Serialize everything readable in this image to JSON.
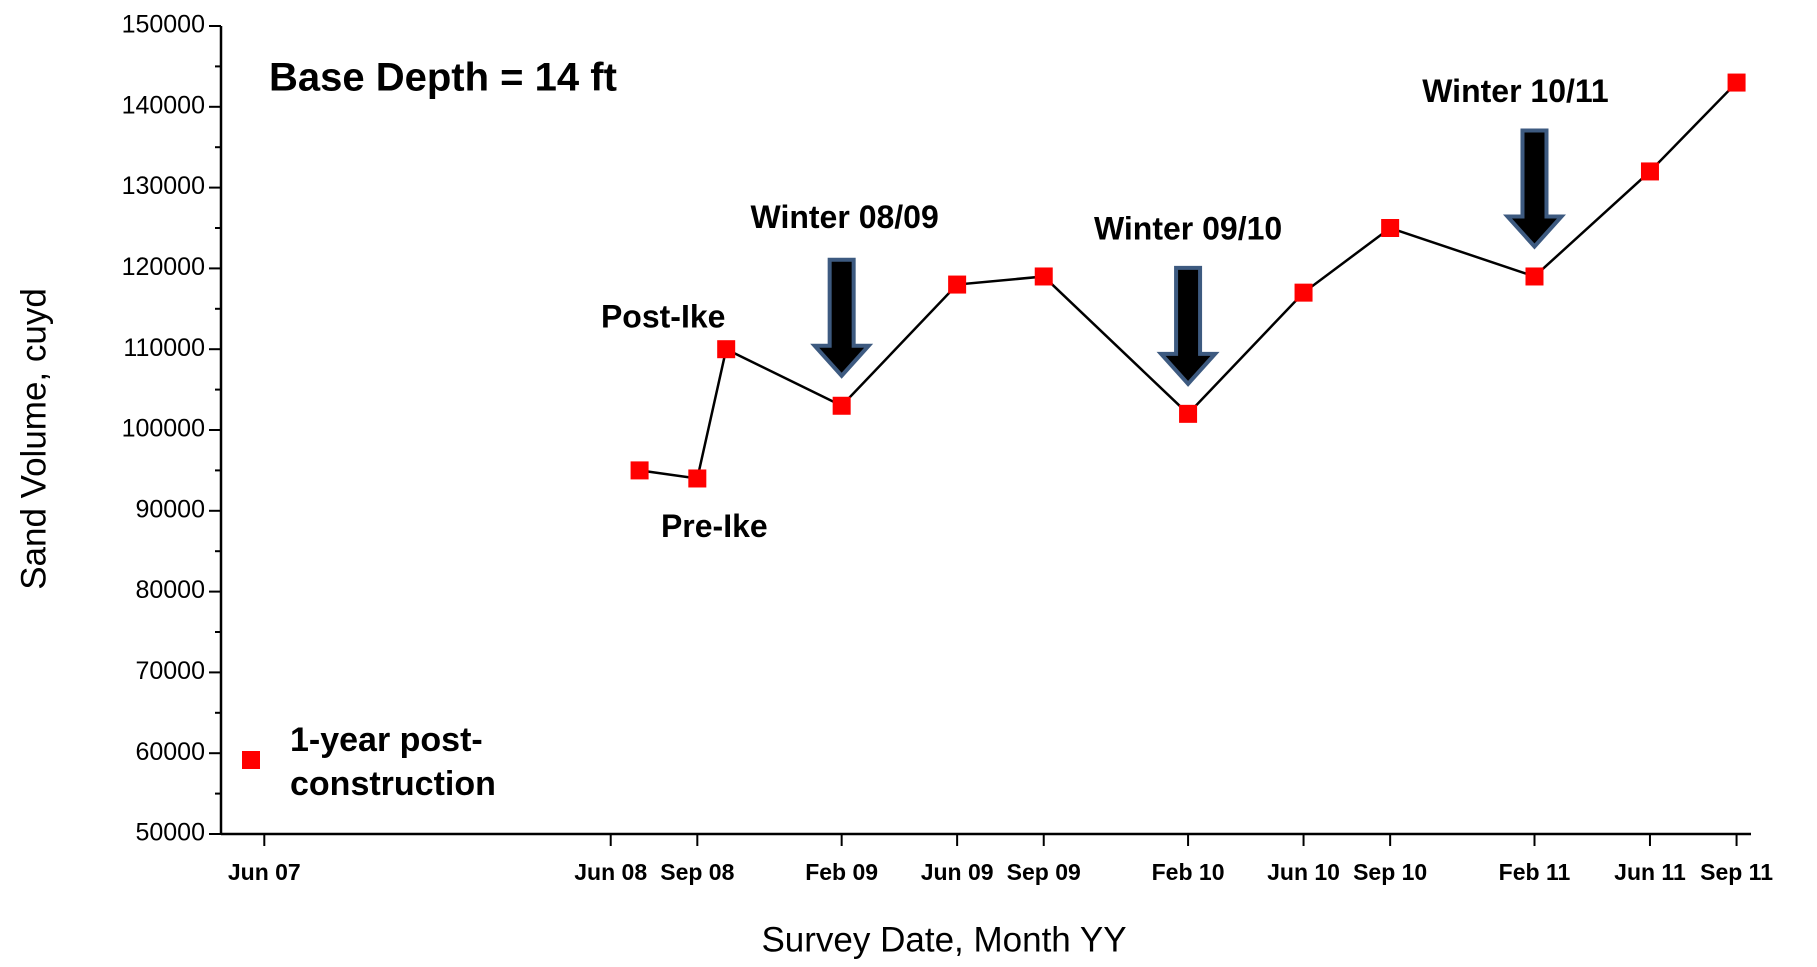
{
  "chart_data": {
    "type": "line",
    "title": "Base Depth = 14 ft",
    "x_label": "Survey Date, Month YY",
    "y_label": "Sand Volume, cuyd",
    "x": [
      18,
      20,
      21,
      25,
      29,
      32,
      37,
      41,
      44,
      49,
      53,
      56
    ],
    "series": [
      {
        "name": "1-year post-construction",
        "color": "#ff0000",
        "values": [
          95000,
          94000,
          110000,
          103000,
          118000,
          119000,
          102000,
          117000,
          125000,
          119000,
          132000,
          143000
        ]
      }
    ],
    "xlim": [
      3.5,
      56.5
    ],
    "xticks": [
      {
        "value": 5,
        "label": "Jun 07"
      },
      {
        "value": 17,
        "label": "Jun 08"
      },
      {
        "value": 20,
        "label": "Sep 08"
      },
      {
        "value": 25,
        "label": "Feb 09"
      },
      {
        "value": 29,
        "label": "Jun 09"
      },
      {
        "value": 32,
        "label": "Sep 09"
      },
      {
        "value": 37,
        "label": "Feb 10"
      },
      {
        "value": 41,
        "label": "Jun 10"
      },
      {
        "value": 44,
        "label": "Sep 10"
      },
      {
        "value": 49,
        "label": "Feb 11"
      },
      {
        "value": 53,
        "label": "Jun 11"
      },
      {
        "value": 56,
        "label": "Sep 11"
      }
    ],
    "ylim": [
      50000,
      150000
    ],
    "yticks": [
      50000,
      60000,
      70000,
      80000,
      90000,
      100000,
      110000,
      120000,
      130000,
      140000,
      150000
    ],
    "annotations": [
      "Pre-Ike",
      "Post-Ike",
      "Winter 08/09",
      "Winter 09/10",
      "Winter 10/11"
    ]
  }
}
